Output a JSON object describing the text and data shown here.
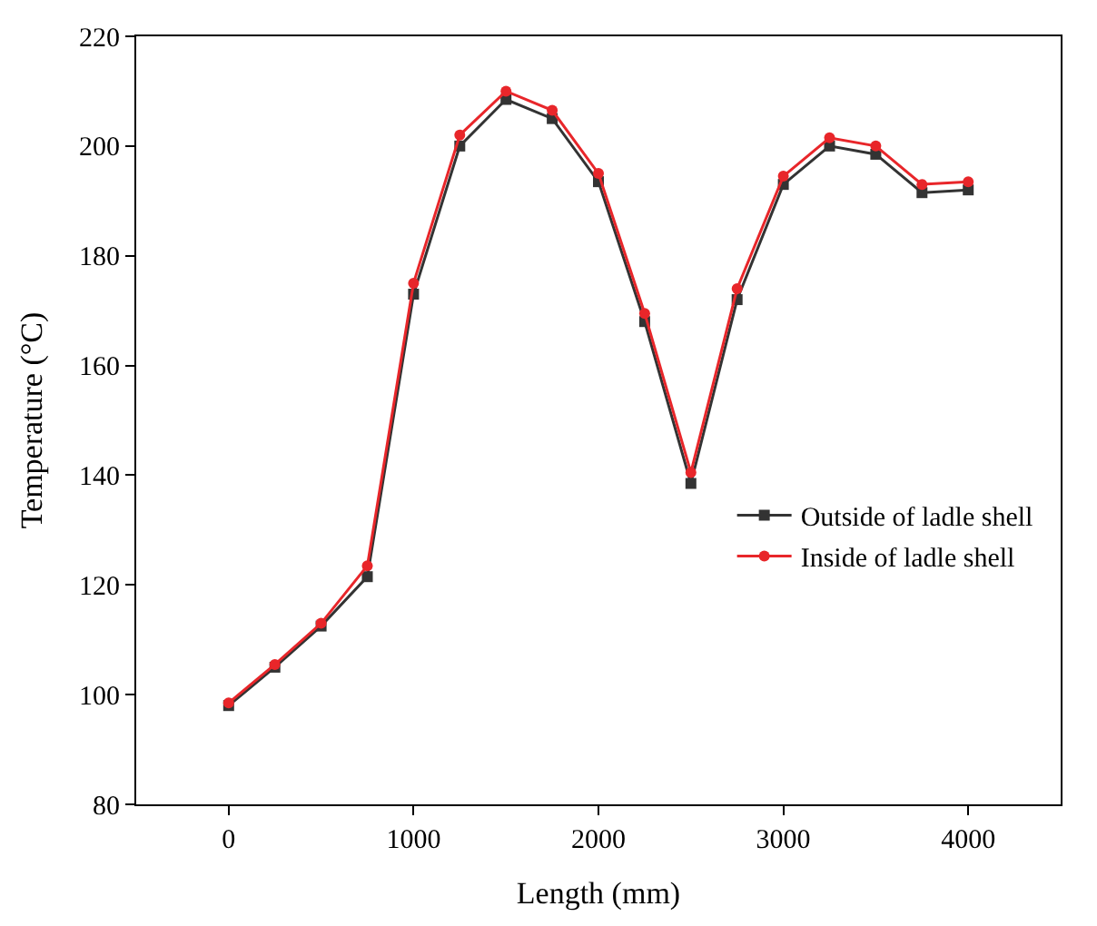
{
  "chart_data": {
    "type": "line",
    "xlabel": "Length (mm)",
    "ylabel": "Temperature (°C)",
    "x": [
      0,
      250,
      500,
      750,
      1000,
      1250,
      1500,
      1750,
      2000,
      2250,
      2500,
      2750,
      3000,
      3250,
      3500,
      3750,
      4000
    ],
    "series": [
      {
        "name": "Outside of ladle shell",
        "color": "#333333",
        "marker": "square",
        "values": [
          98,
          105,
          112.5,
          121.5,
          173,
          200,
          208.5,
          205,
          193.5,
          168,
          138.5,
          172,
          193,
          200,
          198.5,
          191.5,
          192
        ]
      },
      {
        "name": "Inside of ladle shell",
        "color": "#e8262a",
        "marker": "circle",
        "values": [
          98.5,
          105.5,
          113,
          123.5,
          175,
          202,
          210,
          206.5,
          195,
          169.5,
          140.5,
          174,
          194.5,
          201.5,
          200,
          193,
          193.5
        ]
      }
    ],
    "xlim": [
      -500,
      4500
    ],
    "xticks": [
      0,
      1000,
      2000,
      3000,
      4000
    ],
    "ylim": [
      80,
      220
    ],
    "yticks": [
      80,
      100,
      120,
      140,
      160,
      180,
      200,
      220
    ],
    "legend": "right",
    "line_style": "solid"
  }
}
